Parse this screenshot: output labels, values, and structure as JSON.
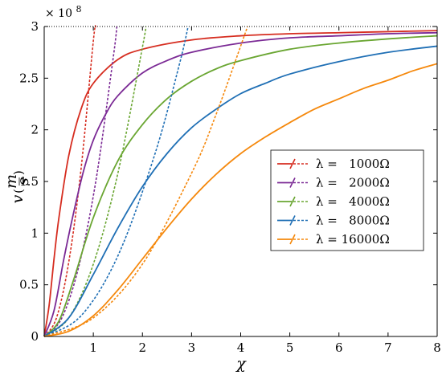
{
  "chart_data": {
    "type": "line",
    "xlabel": "χ",
    "ylabel": "v(m/s)",
    "ylabel_parts": {
      "v": "v",
      "paren_open": "(",
      "num": "m",
      "den": "s",
      "paren_close": ")"
    },
    "y_multiplier": {
      "base": "× 10",
      "exponent": "8"
    },
    "xlim": [
      0,
      8
    ],
    "ylim": [
      0,
      3
    ],
    "x_ticks": [
      1,
      2,
      3,
      4,
      5,
      6,
      7,
      8
    ],
    "x_tick_labels": [
      "1",
      "2",
      "3",
      "4",
      "5",
      "6",
      "7",
      "8"
    ],
    "y_ticks": [
      0,
      0.5,
      1,
      1.5,
      2,
      2.5,
      3
    ],
    "y_tick_labels": [
      "0",
      "0.5",
      "1",
      "1.5",
      "2",
      "2.5",
      "3"
    ],
    "asymptote": 3,
    "grid": false,
    "legend_position": "right-middle",
    "series": [
      {
        "name": "λ =   1000Ω",
        "color": "#d62d20",
        "solid": {
          "x": [
            0,
            0.1,
            0.2,
            0.3,
            0.5,
            0.75,
            1,
            1.5,
            2,
            3,
            4,
            5,
            6,
            7,
            8
          ],
          "y": [
            0,
            0.3,
            0.75,
            1.15,
            1.75,
            2.2,
            2.45,
            2.68,
            2.78,
            2.87,
            2.91,
            2.93,
            2.94,
            2.95,
            2.96
          ]
        },
        "dashed": {
          "x": [
            0,
            0.25,
            0.5,
            0.75,
            1.0,
            1.05
          ],
          "y": [
            0,
            0.18,
            0.72,
            1.62,
            2.86,
            3.0
          ]
        }
      },
      {
        "name": "λ =   2000Ω",
        "color": "#7b2a95",
        "solid": {
          "x": [
            0,
            0.2,
            0.4,
            0.6,
            0.8,
            1,
            1.25,
            1.5,
            2,
            2.5,
            3,
            4,
            5,
            6,
            7,
            8
          ],
          "y": [
            0,
            0.25,
            0.75,
            1.2,
            1.6,
            1.9,
            2.15,
            2.33,
            2.55,
            2.67,
            2.75,
            2.84,
            2.89,
            2.91,
            2.93,
            2.94
          ]
        },
        "dashed": {
          "x": [
            0,
            0.35,
            0.7,
            1.05,
            1.4,
            1.48
          ],
          "y": [
            0,
            0.17,
            0.67,
            1.5,
            2.68,
            3.0
          ]
        }
      },
      {
        "name": "λ =   4000Ω",
        "color": "#6aa632",
        "solid": {
          "x": [
            0,
            0.3,
            0.6,
            1,
            1.5,
            2,
            2.5,
            3,
            3.5,
            4,
            5,
            6,
            7,
            8
          ],
          "y": [
            0,
            0.15,
            0.55,
            1.15,
            1.7,
            2.05,
            2.3,
            2.47,
            2.59,
            2.67,
            2.78,
            2.84,
            2.88,
            2.91
          ]
        },
        "dashed": {
          "x": [
            0,
            0.5,
            1,
            1.5,
            2,
            2.07
          ],
          "y": [
            0,
            0.18,
            0.7,
            1.58,
            2.8,
            3.0
          ]
        }
      },
      {
        "name": "λ =   8000Ω",
        "color": "#1f6fb5",
        "solid": {
          "x": [
            0,
            0.5,
            1,
            1.5,
            2,
            2.5,
            3,
            3.5,
            4,
            4.5,
            5,
            6,
            7,
            8
          ],
          "y": [
            0,
            0.18,
            0.6,
            1.05,
            1.45,
            1.77,
            2.02,
            2.2,
            2.35,
            2.45,
            2.54,
            2.66,
            2.75,
            2.81
          ]
        },
        "dashed": {
          "x": [
            0,
            0.75,
            1.5,
            2.25,
            2.75,
            2.93
          ],
          "y": [
            0,
            0.2,
            0.78,
            1.76,
            2.63,
            3.0
          ]
        }
      },
      {
        "name": "λ = 16000Ω",
        "color": "#f5880c",
        "solid": {
          "x": [
            0,
            0.5,
            1,
            1.5,
            2,
            2.5,
            3,
            3.5,
            4,
            4.5,
            5,
            5.5,
            6,
            6.5,
            7,
            7.5,
            8
          ],
          "y": [
            0,
            0.05,
            0.2,
            0.45,
            0.75,
            1.05,
            1.33,
            1.57,
            1.77,
            1.93,
            2.07,
            2.2,
            2.3,
            2.4,
            2.48,
            2.57,
            2.64
          ]
        },
        "dashed": {
          "x": [
            0,
            1,
            2,
            3,
            3.5,
            4.14
          ],
          "y": [
            0,
            0.18,
            0.7,
            1.58,
            2.15,
            3.0
          ]
        }
      }
    ]
  }
}
